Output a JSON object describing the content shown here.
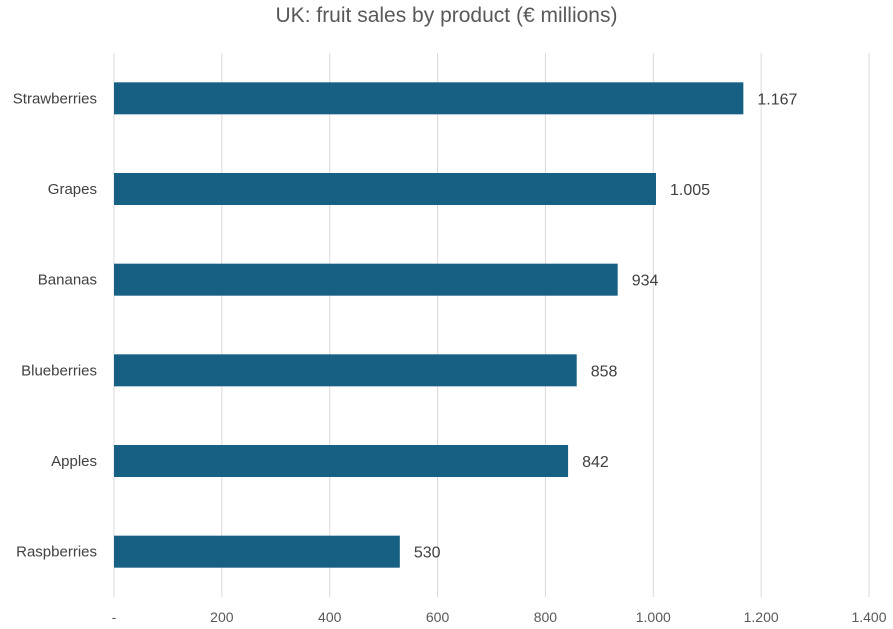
{
  "chart_data": {
    "type": "bar",
    "orientation": "horizontal",
    "title": "UK: fruit sales by product (€ millions)",
    "categories": [
      "Strawberries",
      "Grapes",
      "Bananas",
      "Blueberries",
      "Apples",
      "Raspberries"
    ],
    "values": [
      1167,
      1005,
      934,
      858,
      842,
      530
    ],
    "data_labels": [
      "1.167",
      "1.005",
      "934",
      "858",
      "842",
      "530"
    ],
    "x_ticks": [
      0,
      200,
      400,
      600,
      800,
      1000,
      1200,
      1400
    ],
    "x_tick_labels": [
      "-",
      "200",
      "400",
      "600",
      "800",
      "1.000",
      "1.200",
      "1.400"
    ],
    "xlim": [
      0,
      1400
    ],
    "grid": "vertical",
    "legend": "none",
    "bar_color": "#175f83",
    "grid_color": "#d9d9d9"
  }
}
